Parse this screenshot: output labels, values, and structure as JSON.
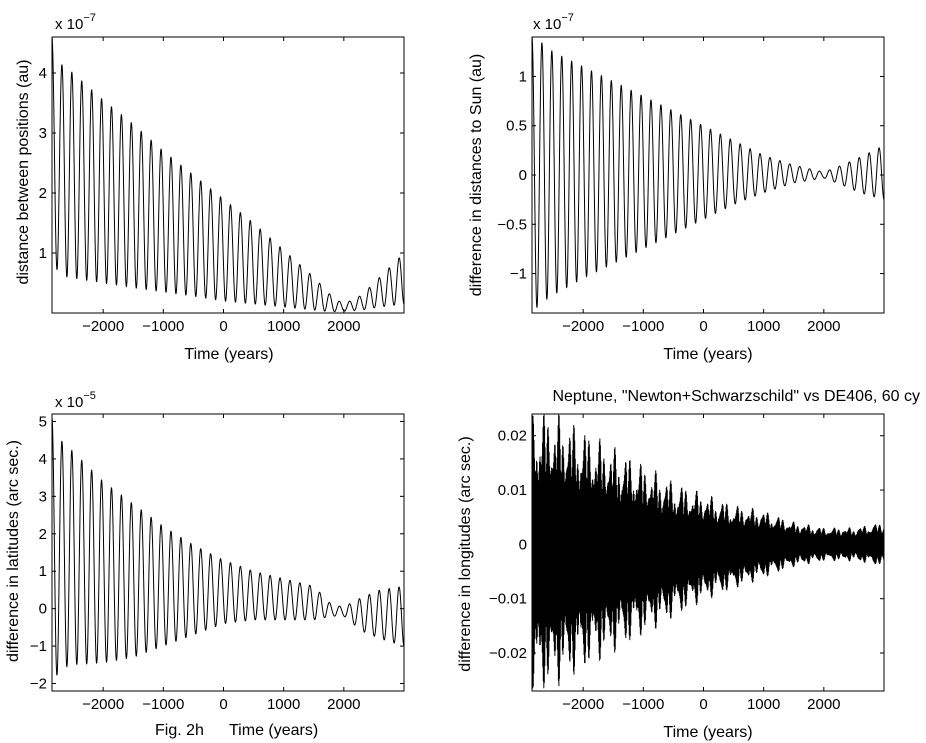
{
  "figure_caption": "Fig. 2h",
  "chart_data": [
    {
      "type": "line",
      "title": "",
      "xlabel": "Time (years)",
      "ylabel": "distance between positions (au)",
      "y_exponent_label": "x 10",
      "y_exponent": "−7",
      "xlim": [
        -2850,
        3000
      ],
      "ylim": [
        0,
        4.6
      ],
      "xticks": [
        -2000,
        -1000,
        0,
        1000,
        2000
      ],
      "xtick_labels": [
        "−2000",
        "−1000",
        "0",
        "1000",
        "2000"
      ],
      "yticks": [
        1,
        2,
        3,
        4
      ],
      "ytick_labels": [
        "1",
        "2",
        "3",
        "4"
      ],
      "grid": false,
      "series": [
        {
          "period_years": 164.8,
          "x": [
            -2850,
            -2700,
            -2500,
            -2000,
            -1500,
            -1000,
            -500,
            0,
            500,
            1000,
            1500,
            1800,
            2000,
            2300,
            2600,
            3000
          ],
          "envelope_max": [
            4.6,
            4.15,
            4.0,
            3.55,
            3.15,
            2.7,
            2.3,
            1.9,
            1.5,
            1.05,
            0.6,
            0.28,
            0.15,
            0.3,
            0.6,
            1.0
          ],
          "envelope_min": [
            0.85,
            0.62,
            0.58,
            0.5,
            0.42,
            0.35,
            0.28,
            0.2,
            0.15,
            0.1,
            0.05,
            0.02,
            0.03,
            0.05,
            0.1,
            0.15
          ]
        }
      ]
    },
    {
      "type": "line",
      "title": "",
      "xlabel": "Time (years)",
      "ylabel": "difference in distances to Sun (au)",
      "y_exponent_label": "x 10",
      "y_exponent": "−7",
      "xlim": [
        -2850,
        3000
      ],
      "ylim": [
        -1.4,
        1.4
      ],
      "xticks": [
        -2000,
        -1000,
        0,
        1000,
        2000
      ],
      "xtick_labels": [
        "−2000",
        "−1000",
        "0",
        "1000",
        "2000"
      ],
      "yticks": [
        -1,
        -0.5,
        0,
        0.5,
        1
      ],
      "ytick_labels": [
        "−1",
        "−0.5",
        "0",
        "0.5",
        "1"
      ],
      "grid": false,
      "series": [
        {
          "period_years": 164.8,
          "x": [
            -2850,
            -2700,
            -2500,
            -2000,
            -1500,
            -1000,
            -500,
            0,
            500,
            1000,
            1500,
            2000,
            2300,
            2600,
            3000
          ],
          "envelope_max": [
            1.4,
            1.35,
            1.25,
            1.1,
            0.95,
            0.8,
            0.65,
            0.5,
            0.35,
            0.2,
            0.1,
            0.03,
            0.1,
            0.18,
            0.3
          ],
          "envelope_min": [
            -1.4,
            -1.3,
            -1.22,
            -1.05,
            -0.9,
            -0.75,
            -0.6,
            -0.45,
            -0.3,
            -0.18,
            -0.08,
            -0.03,
            -0.1,
            -0.18,
            -0.25
          ]
        }
      ]
    },
    {
      "type": "line",
      "title": "",
      "xlabel": "Time (years)",
      "ylabel": "difference in latitudes (arc sec.)",
      "y_exponent_label": "x 10",
      "y_exponent": "−5",
      "xlim": [
        -2850,
        3000
      ],
      "ylim": [
        -2.2,
        5.2
      ],
      "xticks": [
        -2000,
        -1000,
        0,
        1000,
        2000
      ],
      "xtick_labels": [
        "−2000",
        "−1000",
        "0",
        "1000",
        "2000"
      ],
      "yticks": [
        -2,
        -1,
        0,
        1,
        2,
        3,
        4,
        5
      ],
      "ytick_labels": [
        "−2",
        "−1",
        "0",
        "1",
        "2",
        "3",
        "4",
        "5"
      ],
      "grid": false,
      "series": [
        {
          "period_years": 164.8,
          "x": [
            -2850,
            -2700,
            -2500,
            -2000,
            -1500,
            -1000,
            -500,
            0,
            500,
            1000,
            1500,
            1800,
            2000,
            2300,
            2600,
            3000
          ],
          "envelope_max": [
            5.1,
            4.5,
            4.2,
            3.4,
            2.8,
            2.2,
            1.7,
            1.3,
            1.0,
            0.8,
            0.6,
            0.1,
            0.05,
            0.3,
            0.5,
            0.6
          ],
          "envelope_min": [
            -2.0,
            -1.6,
            -1.5,
            -1.45,
            -1.3,
            -1.0,
            -0.7,
            -0.4,
            -0.3,
            -0.3,
            -0.3,
            -0.2,
            -0.2,
            -0.6,
            -0.8,
            -1.0
          ]
        }
      ]
    },
    {
      "type": "line",
      "title": "Neptune, \"Newton+Schwarzschild\" vs DE406, 60 cy",
      "xlabel": "Time (years)",
      "ylabel": "difference in longitudes (arc sec.)",
      "xlim": [
        -2850,
        3000
      ],
      "ylim": [
        -0.027,
        0.024
      ],
      "xticks": [
        -2000,
        -1000,
        0,
        1000,
        2000
      ],
      "xtick_labels": [
        "−2000",
        "−1000",
        "0",
        "1000",
        "2000"
      ],
      "yticks": [
        -0.02,
        -0.01,
        0,
        0.01,
        0.02
      ],
      "ytick_labels": [
        "−0.02",
        "−0.01",
        "0",
        "0.01",
        "0.02"
      ],
      "grid": false,
      "series": [
        {
          "period_years": 12,
          "x": [
            -2850,
            -2500,
            -2000,
            -1500,
            -1000,
            -500,
            0,
            500,
            1000,
            1500,
            2000,
            2500,
            3000
          ],
          "envelope_max": [
            0.023,
            0.023,
            0.02,
            0.017,
            0.014,
            0.011,
            0.009,
            0.007,
            0.006,
            0.004,
            0.003,
            0.003,
            0.004
          ],
          "envelope_min": [
            -0.026,
            -0.025,
            -0.022,
            -0.019,
            -0.016,
            -0.013,
            -0.01,
            -0.008,
            -0.006,
            -0.004,
            -0.003,
            -0.003,
            -0.004
          ]
        }
      ]
    }
  ]
}
